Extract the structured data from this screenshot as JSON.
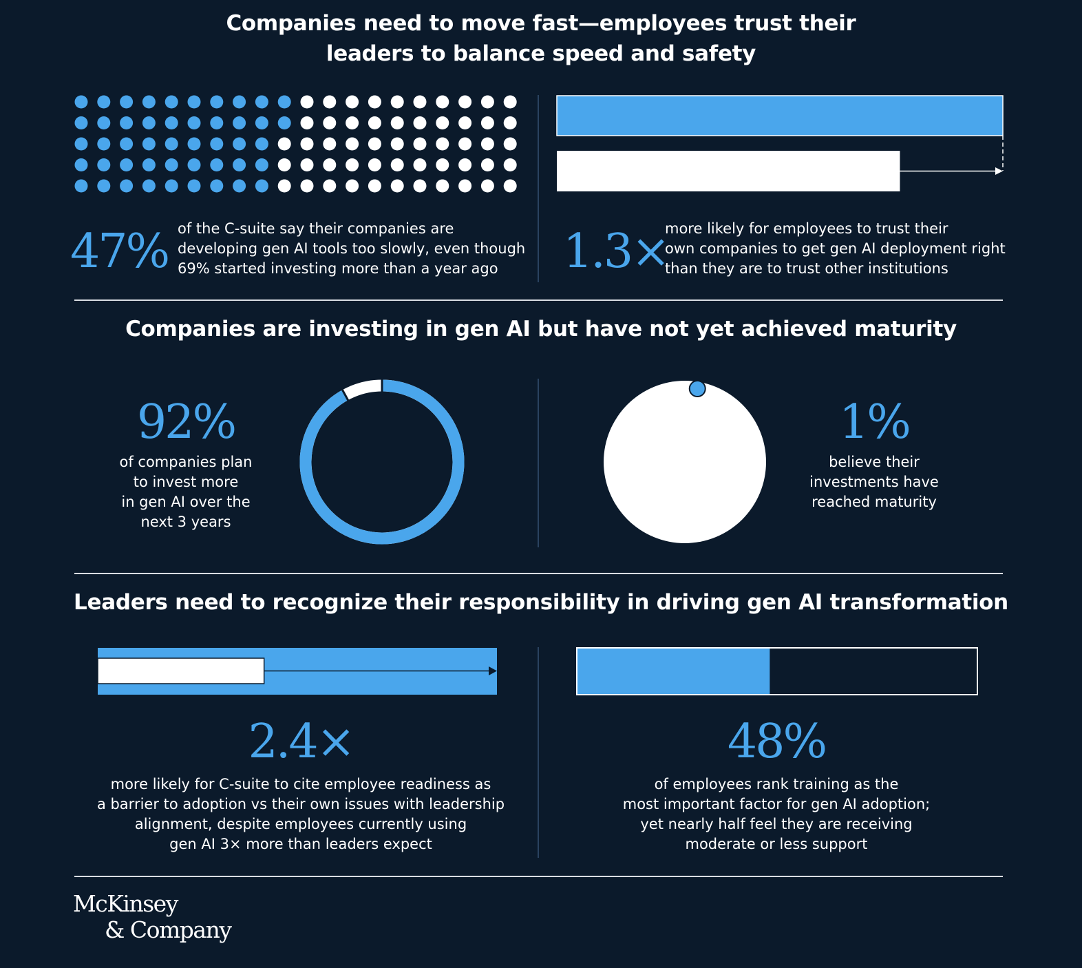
{
  "colors": {
    "background": "#0b1a2b",
    "accent_blue": "#4aa6ec",
    "white": "#ffffff"
  },
  "section1": {
    "heading_line1": "Companies need to move fast—employees trust their",
    "heading_line2": "leaders to balance speed and safety",
    "left": {
      "stat": "47%",
      "desc_line1": "of the C-suite say their companies are",
      "desc_line2": "developing gen AI tools too slowly, even though",
      "desc_line3": "69% started investing more than a year ago",
      "dot_grid": {
        "rows": 5,
        "cols": 20,
        "highlighted": 47
      }
    },
    "right": {
      "stat": "1.3×",
      "desc_line1": "more likely for employees to trust their",
      "desc_line2": "own companies to get gen AI deployment right",
      "desc_line3": "than they are to trust other institutions",
      "bar_ratio": 1.3
    }
  },
  "section2": {
    "heading": "Companies are investing in gen AI but have not yet achieved maturity",
    "left": {
      "stat": "92%",
      "desc_line1": "of companies plan",
      "desc_line2": "to invest more",
      "desc_line3": "in gen AI over the",
      "desc_line4": "next 3 years",
      "ring_fraction": 0.92
    },
    "right": {
      "stat": "1%",
      "desc_line1": "believe their",
      "desc_line2": "investments have",
      "desc_line3": "reached maturity",
      "dot_fraction": 0.01
    }
  },
  "section3": {
    "heading": "Leaders need to recognize their responsibility in driving gen AI transformation",
    "left": {
      "stat": "2.4×",
      "desc_line1": "more likely for C-suite to cite employee readiness as",
      "desc_line2": "a barrier to adoption vs their own issues with leadership",
      "desc_line3": "alignment, despite employees currently using",
      "desc_line4": "gen AI 3× more than leaders expect",
      "bar_ratio": 2.4
    },
    "right": {
      "stat": "48%",
      "desc_line1": "of employees rank training as the",
      "desc_line2": "most important factor for gen AI adoption;",
      "desc_line3": "yet nearly half feel they are receiving",
      "desc_line4": "moderate or less support",
      "bar_fraction": 0.48
    }
  },
  "footer": {
    "logo_line1": "McKinsey",
    "logo_line2": "& Company"
  }
}
